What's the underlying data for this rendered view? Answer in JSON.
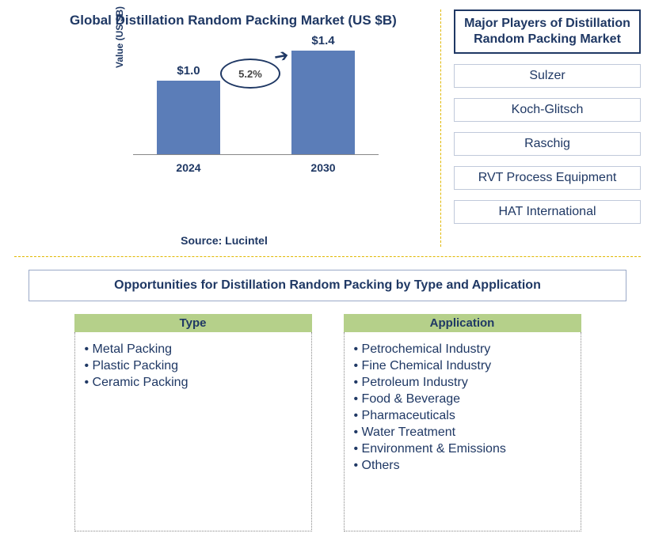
{
  "chart": {
    "title": "Global Distillation Random Packing Market (US $B)",
    "ylabel": "Value (US $B)",
    "type": "bar",
    "categories": [
      "2024",
      "2030"
    ],
    "values": [
      1.0,
      1.4
    ],
    "value_labels": [
      "$1.0",
      "$1.4"
    ],
    "bar_color": "#5b7db8",
    "ymax": 1.5,
    "cagr_label": "5.2%",
    "source_label": "Source: Lucintel",
    "title_color": "#1f3864",
    "text_color": "#1f3864"
  },
  "players": {
    "header": "Major Players of Distillation Random Packing Market",
    "list": [
      "Sulzer",
      "Koch-Glitsch",
      "Raschig",
      "RVT Process Equipment",
      "HAT International"
    ]
  },
  "opportunities": {
    "header": "Opportunities for Distillation Random Packing by Type and Application",
    "columns": [
      {
        "title": "Type",
        "items": [
          "Metal Packing",
          "Plastic Packing",
          "Ceramic Packing"
        ]
      },
      {
        "title": "Application",
        "items": [
          "Petrochemical Industry",
          "Fine Chemical Industry",
          "Petroleum Industry",
          "Food & Beverage",
          "Pharmaceuticals",
          "Water Treatment",
          "Environment & Emissions",
          "Others"
        ]
      }
    ],
    "header_bg": "#b5d08a"
  }
}
